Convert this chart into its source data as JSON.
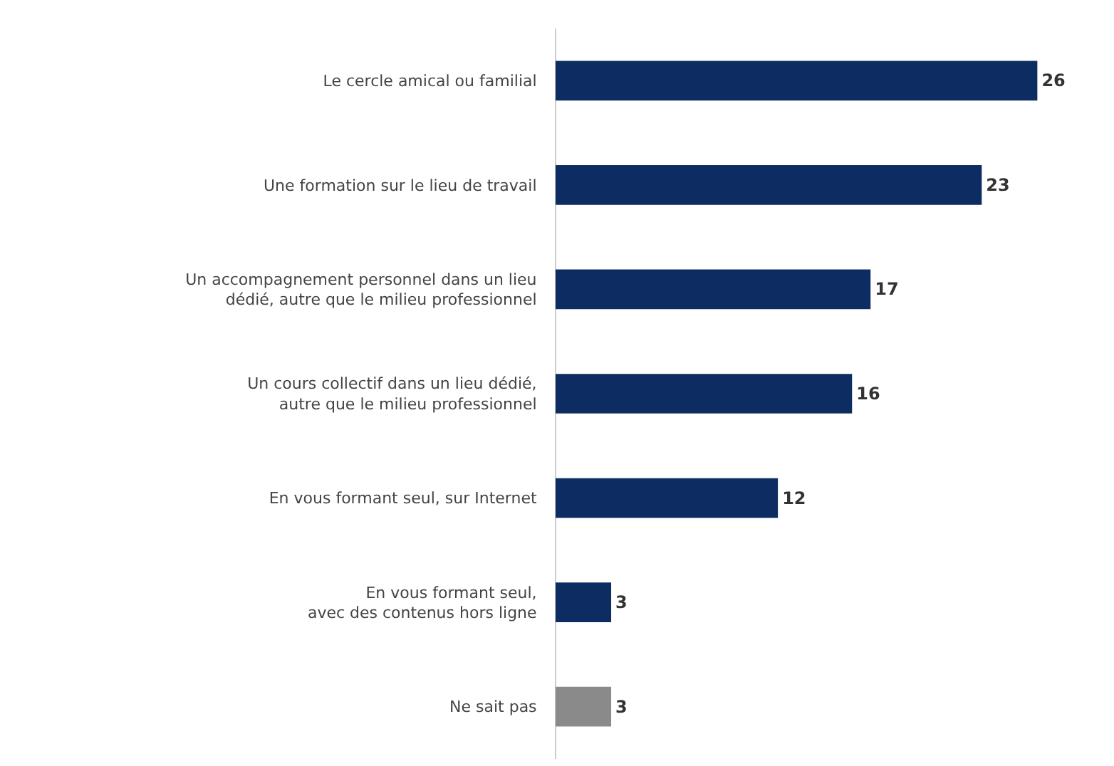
{
  "chart_data": {
    "type": "bar",
    "orientation": "horizontal",
    "categories": [
      "Le cercle amical ou familial",
      "Une formation sur le lieu de travail",
      "Un accompagnement personnel dans un lieu\ndédié, autre que le milieu professionnel",
      "Un cours collectif dans un lieu dédié,\nautre que le milieu professionnel",
      "En vous formant seul, sur Internet",
      "En vous formant seul,\navec des contenus hors ligne",
      "Ne sait pas"
    ],
    "values": [
      26,
      23,
      17,
      16,
      12,
      3,
      3
    ],
    "colors": [
      "#0d2d62",
      "#0d2d62",
      "#0d2d62",
      "#0d2d62",
      "#0d2d62",
      "#0d2d62",
      "#8a8a8a"
    ],
    "data_labels": true
  }
}
